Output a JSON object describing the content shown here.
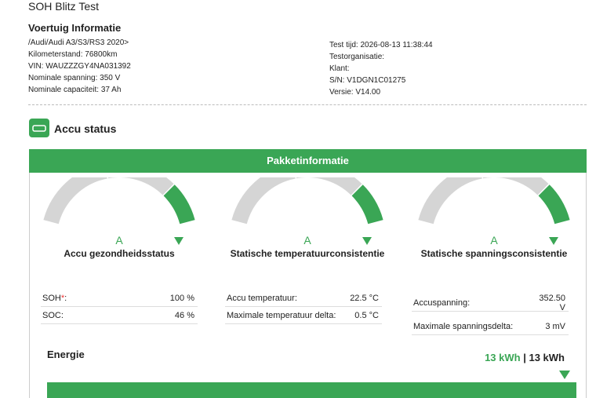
{
  "header": {
    "title": "SOH Blitz Test"
  },
  "vehicle": {
    "title": "Voertuig Informatie",
    "lines": [
      "/Audi/Audi A3/S3/RS3 2020>",
      "Kilometerstand: 76800km",
      "VIN: WAUZZZGY4NA031392",
      "Nominale spanning: 350 V",
      "Nominale capaciteit: 37 Ah"
    ]
  },
  "test": {
    "lines": [
      "Test tijd: 2026-08-13 11:38:44",
      "Testorganisatie:",
      "Klant:",
      "S/N: V1DGN1C01275",
      "Versie: V14.00"
    ]
  },
  "section": {
    "title": "Accu status",
    "panel_title": "Pakketinformatie"
  },
  "gauges": [
    {
      "grade": "A",
      "label": "Accu gezondheidsstatus",
      "rows": [
        {
          "label": "SOH",
          "required": "*",
          "colon": ":",
          "value": "100 %"
        },
        {
          "label": "SOC:",
          "value": "46 %"
        }
      ]
    },
    {
      "grade": "A",
      "label": "Statische temperatuurconsistentie",
      "rows": [
        {
          "label": "Accu temperatuur:",
          "value": "22.5 °C"
        },
        {
          "label": "Maximale temperatuur delta:",
          "value": "0.5 °C"
        }
      ]
    },
    {
      "grade": "A",
      "label": "Statische spanningsconsistentie",
      "rows": [
        {
          "label": "Accuspanning:",
          "value": "352.50 V"
        },
        {
          "label": "Maximale spanningsdelta:",
          "value": "3 mV"
        }
      ]
    }
  ],
  "energy": {
    "title": "Energie",
    "current": "13 kWh",
    "separator": "|",
    "total": "13 kWh"
  }
}
